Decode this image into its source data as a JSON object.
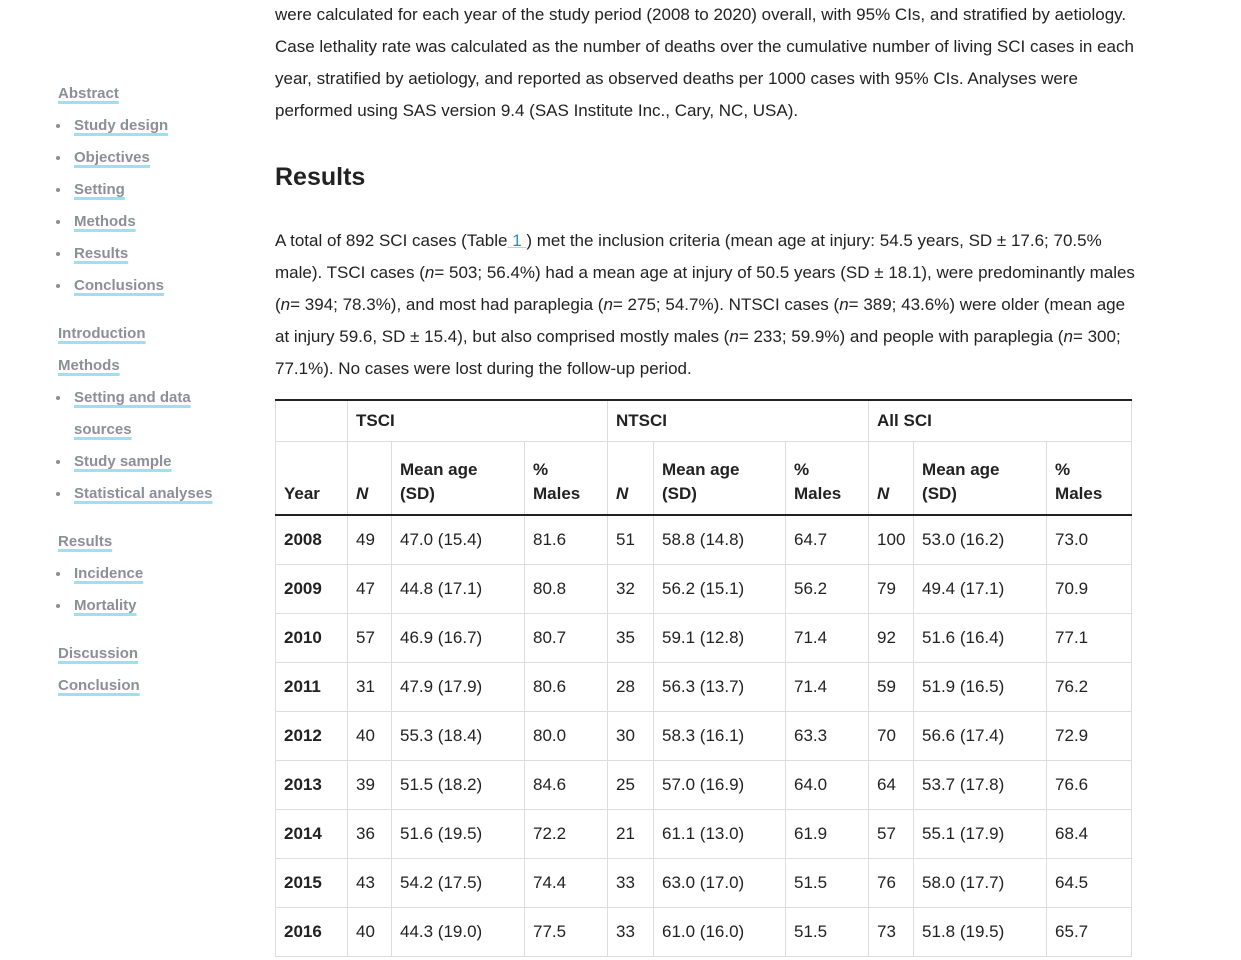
{
  "sidebar": [
    {
      "label": "Abstract",
      "items": [
        "Study design",
        "Objectives",
        "Setting",
        "Methods",
        "Results",
        "Conclusions"
      ]
    },
    {
      "label": "Introduction",
      "items": []
    },
    {
      "label": "Methods",
      "items": [
        "Setting and data sources",
        "Study sample",
        "Statistical analyses"
      ]
    },
    {
      "label": "Results",
      "items": [
        "Incidence",
        "Mortality"
      ]
    },
    {
      "label": "Discussion",
      "items": []
    },
    {
      "label": "Conclusion",
      "items": []
    }
  ],
  "article": {
    "intro": "were calculated for each year of the study period (2008 to 2020) overall, with 95% CIs, and stratified by aetiology. Case lethality rate was calculated as the number of deaths over the cumulative number of living SCI cases in each year, stratified by aetiology, and reported as observed deaths per 1000 cases with 95% CIs. Analyses were performed using SAS version 9.4 (SAS Institute Inc., Cary, NC, USA).",
    "heading": "Results",
    "paragraph": [
      {
        "text": "A total of 892 SCI cases (Table",
        "style": "plain"
      },
      {
        "text": " 1 ",
        "style": "link"
      },
      {
        "text": ") met the inclusion criteria (mean age at injury: 54.5 years, SD ± 17.6; 70.5% male). TSCI cases (",
        "style": "plain"
      },
      {
        "text": "n",
        "style": "italic"
      },
      {
        "text": "= 503; 56.4%) had a mean age at injury of 50.5 years (SD ± 18.1), were predominantly males (",
        "style": "plain"
      },
      {
        "text": "n",
        "style": "italic"
      },
      {
        "text": "= 394; 78.3%), and most had paraplegia (",
        "style": "plain"
      },
      {
        "text": "n",
        "style": "italic"
      },
      {
        "text": "= 275; 54.7%). NTSCI cases (",
        "style": "plain"
      },
      {
        "text": "n",
        "style": "italic"
      },
      {
        "text": "= 389; 43.6%) were older (mean age at injury 59.6, SD ± 15.4), but also comprised mostly males (",
        "style": "plain"
      },
      {
        "text": "n",
        "style": "italic"
      },
      {
        "text": "= 233; 59.9%) and people with paraplegia (",
        "style": "plain"
      },
      {
        "text": "n",
        "style": "italic"
      },
      {
        "text": "= 300; 77.1%). No cases were lost during the follow-up period.",
        "style": "plain"
      }
    ]
  },
  "table": {
    "groups": [
      "TSCI",
      "NTSCI",
      "All SCI"
    ],
    "columns": [
      "Year",
      "N",
      "Mean age (SD)",
      "% Males",
      "N",
      "Mean age (SD)",
      "% Males",
      "N",
      "Mean age (SD)",
      "% Males"
    ],
    "rows": [
      [
        "2008",
        "49",
        "47.0 (15.4)",
        "81.6",
        "51",
        "58.8 (14.8)",
        "64.7",
        "100",
        "53.0 (16.2)",
        "73.0"
      ],
      [
        "2009",
        "47",
        "44.8 (17.1)",
        "80.8",
        "32",
        "56.2 (15.1)",
        "56.2",
        "79",
        "49.4 (17.1)",
        "70.9"
      ],
      [
        "2010",
        "57",
        "46.9 (16.7)",
        "80.7",
        "35",
        "59.1 (12.8)",
        "71.4",
        "92",
        "51.6 (16.4)",
        "77.1"
      ],
      [
        "2011",
        "31",
        "47.9 (17.9)",
        "80.6",
        "28",
        "56.3 (13.7)",
        "71.4",
        "59",
        "51.9 (16.5)",
        "76.2"
      ],
      [
        "2012",
        "40",
        "55.3 (18.4)",
        "80.0",
        "30",
        "58.3 (16.1)",
        "63.3",
        "70",
        "56.6 (17.4)",
        "72.9"
      ],
      [
        "2013",
        "39",
        "51.5 (18.2)",
        "84.6",
        "25",
        "57.0 (16.9)",
        "64.0",
        "64",
        "53.7 (17.8)",
        "76.6"
      ],
      [
        "2014",
        "36",
        "51.6 (19.5)",
        "72.2",
        "21",
        "61.1 (13.0)",
        "61.9",
        "57",
        "55.1 (17.9)",
        "68.4"
      ],
      [
        "2015",
        "43",
        "54.2 (17.5)",
        "74.4",
        "33",
        "63.0 (17.0)",
        "51.5",
        "76",
        "58.0 (17.7)",
        "64.5"
      ],
      [
        "2016",
        "40",
        "44.3 (19.0)",
        "77.5",
        "33",
        "61.0 (16.0)",
        "51.5",
        "73",
        "51.8 (19.5)",
        "65.7"
      ]
    ]
  }
}
